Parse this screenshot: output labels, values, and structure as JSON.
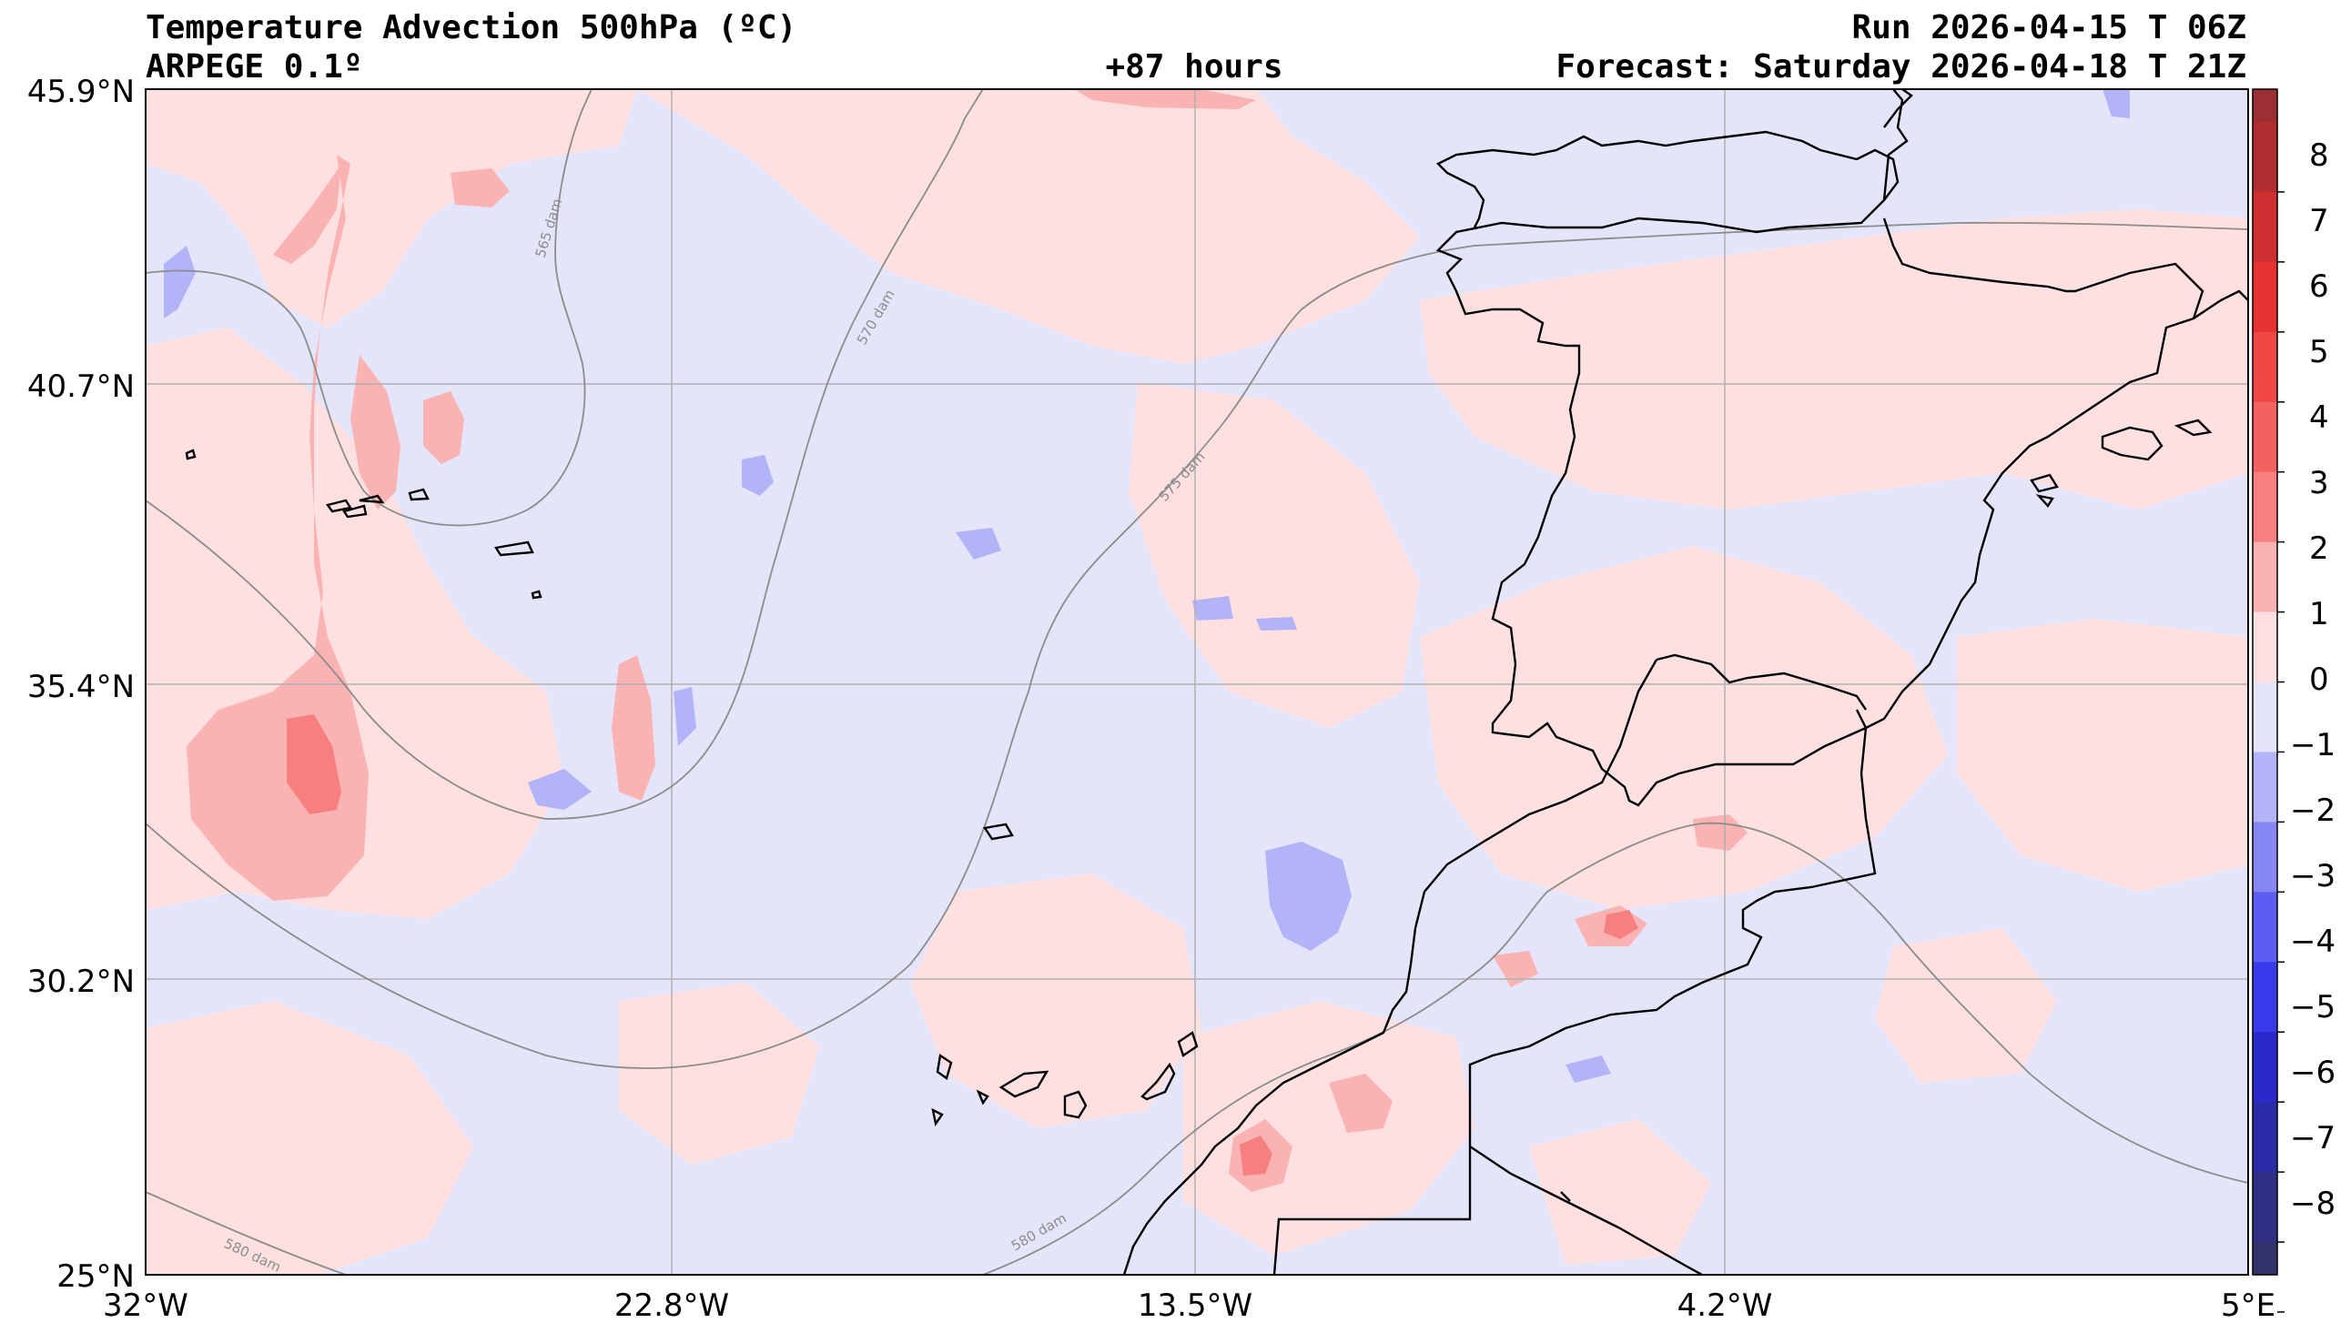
{
  "header": {
    "title": "Temperature Advection  500hPa (ºC)",
    "model": "ARPEGE 0.1º",
    "lead": "+87 hours",
    "run": "Run 2026-04-15 T 06Z",
    "forecast": "Forecast: Saturday 2026-04-18 T 21Z"
  },
  "map": {
    "lat_labels": [
      "45.9°N",
      "40.7°N",
      "35.4°N",
      "30.2°N",
      "25°N"
    ],
    "lon_labels": [
      "32°W",
      "22.8°W",
      "13.5°W",
      "4.2°W",
      "5°E"
    ],
    "isohypse_labels": [
      "565 dam",
      "570 dam",
      "575 dam",
      "580 dam",
      "580 dam"
    ],
    "colors": {
      "warm_light": "#fde0df",
      "cool_light": "#e4e4fb",
      "warm_mid": "#fbb2b2",
      "warm_strong": "#f67f7f",
      "cool_mid": "#b3b3f8",
      "coast": "#000000",
      "isohypse": "#8c8c8c",
      "grid": "#b0b0b0"
    }
  },
  "colorbar": {
    "tick_labels": [
      "8",
      "7",
      "6",
      "5",
      "4",
      "3",
      "2",
      "1",
      "0",
      "−1",
      "−2",
      "−3",
      "−4",
      "−5",
      "−6",
      "−7",
      "−8"
    ],
    "colors": [
      "#9c2f33",
      "#b22d30",
      "#ce2f30",
      "#e83131",
      "#f04747",
      "#f46161",
      "#f67f7f",
      "#fbb2b2",
      "#fde0df",
      "#e4e4fb",
      "#b3b3f8",
      "#8787f4",
      "#5d5df1",
      "#3a3aec",
      "#2929cc",
      "#2b2ba8",
      "#2f2f83",
      "#33336a"
    ]
  }
}
